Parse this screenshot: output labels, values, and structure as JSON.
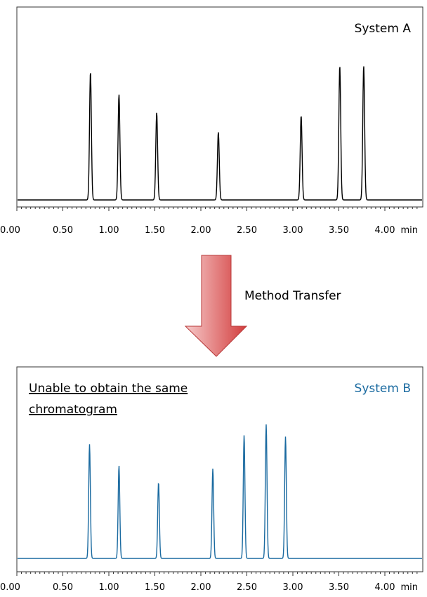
{
  "arrow_label": "Method Transfer",
  "colors": {
    "system_a_trace": "#000000",
    "system_b_trace": "#1a6aa0",
    "system_b_label": "#1a6aa0",
    "arrow_light": "#f6c9c9",
    "arrow_dark": "#d23c3c"
  },
  "chart_data": [
    {
      "type": "line",
      "title": "System A",
      "annotation": "",
      "xlabel": "min",
      "ylabel": "",
      "xlim": [
        0,
        4.35
      ],
      "ylim": [
        0,
        1
      ],
      "x_ticks": [
        "0.00",
        "0.50",
        "1.00",
        "1.50",
        "2.00",
        "2.50",
        "3.00",
        "3.50",
        "4.00"
      ],
      "x_tick_values": [
        0,
        0.5,
        1.0,
        1.5,
        2.0,
        2.5,
        3.0,
        3.5,
        4.0
      ],
      "baseline": 0.0,
      "peaks": [
        {
          "rt": 0.8,
          "height": 0.85
        },
        {
          "rt": 1.11,
          "height": 0.7
        },
        {
          "rt": 1.52,
          "height": 0.58
        },
        {
          "rt": 2.19,
          "height": 0.45
        },
        {
          "rt": 3.09,
          "height": 0.56
        },
        {
          "rt": 3.51,
          "height": 0.89
        },
        {
          "rt": 3.77,
          "height": 0.89
        }
      ]
    },
    {
      "type": "line",
      "title": "System B",
      "annotation": "Unable to obtain the same chromatogram",
      "xlabel": "min",
      "ylabel": "",
      "xlim": [
        0,
        4.35
      ],
      "ylim": [
        0,
        1
      ],
      "x_ticks": [
        "0.00",
        "0.50",
        "1.00",
        "1.50",
        "2.00",
        "2.50",
        "3.00",
        "3.50",
        "4.00"
      ],
      "x_tick_values": [
        0,
        0.5,
        1.0,
        1.5,
        2.0,
        2.5,
        3.0,
        3.5,
        4.0
      ],
      "baseline": 0.0,
      "peaks": [
        {
          "rt": 0.79,
          "height": 0.75
        },
        {
          "rt": 1.11,
          "height": 0.61
        },
        {
          "rt": 1.54,
          "height": 0.5
        },
        {
          "rt": 2.13,
          "height": 0.59
        },
        {
          "rt": 2.47,
          "height": 0.81
        },
        {
          "rt": 2.71,
          "height": 0.88
        },
        {
          "rt": 2.92,
          "height": 0.8
        }
      ]
    }
  ]
}
